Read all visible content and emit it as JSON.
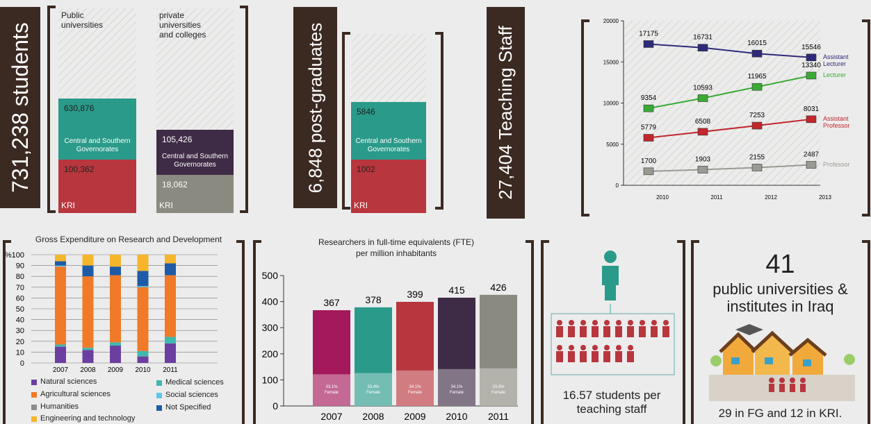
{
  "students": {
    "title": "731,238 students",
    "columns": [
      {
        "label": "Public universities",
        "segments": [
          {
            "value": "630,876",
            "label": "Central and Southern Governorates"
          },
          {
            "value": "100,362",
            "label": "KRI"
          }
        ]
      },
      {
        "label": "private universities and colleges",
        "segments": [
          {
            "value": "105,426",
            "label": "Central and Southern Governorates"
          },
          {
            "value": "18,062",
            "label": "KRI"
          }
        ]
      }
    ]
  },
  "postgraduates": {
    "title": "6,848 post-graduates",
    "segments": [
      {
        "value": 5846,
        "label": "Central and Southern Governorates"
      },
      {
        "value": 1002,
        "label": "KRI"
      }
    ]
  },
  "teaching_staff": {
    "title": "27,404 Teaching Staff"
  },
  "ratio": {
    "text": "16.57 students per teaching staff"
  },
  "universities": {
    "count": "41",
    "label": "public universities & institutes in Iraq",
    "note": "29 in FG and 12 in KRI."
  },
  "chart_data": [
    {
      "type": "line",
      "categories": [
        "2010",
        "2011",
        "2012",
        "2013"
      ],
      "ylim": [
        0,
        20000
      ],
      "yticks": [
        0,
        5000,
        10000,
        15000,
        20000
      ],
      "series": [
        {
          "name": "Assistant Lecturer",
          "color": "#2e2a7a",
          "values": [
            17175,
            16731,
            16015,
            15546
          ]
        },
        {
          "name": "Lecturer",
          "color": "#3aaa35",
          "values": [
            9354,
            10593,
            11965,
            13340
          ]
        },
        {
          "name": "Assistant Professor",
          "color": "#c1272d",
          "values": [
            5779,
            6508,
            7253,
            8031
          ]
        },
        {
          "name": "Professor",
          "color": "#9a9a94",
          "values": [
            1700,
            1903,
            2155,
            2487
          ]
        }
      ]
    },
    {
      "type": "stacked-bar",
      "title": "Gross Expenditure on Research and Development",
      "categories": [
        "2007",
        "2008",
        "2009",
        "2010",
        "2011"
      ],
      "ylim": [
        0,
        100
      ],
      "yticks": [
        0,
        10,
        20,
        30,
        40,
        50,
        60,
        70,
        80,
        90,
        {
          "value": 100,
          "label": "%100"
        }
      ],
      "grid": true,
      "series": [
        {
          "name": "Natural sciences",
          "color": "#6b3fa0",
          "values": [
            15,
            12,
            16,
            6,
            18
          ]
        },
        {
          "name": "Medical sciences",
          "color": "#3fb8b0",
          "values": [
            2,
            2,
            3,
            5,
            6
          ]
        },
        {
          "name": "Agricultural sciences",
          "color": "#f07a28",
          "values": [
            72,
            66,
            62,
            59,
            57
          ]
        },
        {
          "name": "Social sciences",
          "color": "#5ec6e8",
          "values": [
            1,
            0,
            0,
            1,
            0
          ]
        },
        {
          "name": "Not Specified",
          "color": "#1f5aa6",
          "values": [
            4,
            10,
            8,
            14,
            11
          ]
        },
        {
          "name": "Humanities",
          "color": "#8c8c8c",
          "values": [
            0,
            0,
            0,
            0,
            0
          ]
        },
        {
          "name": "Engineering and technology",
          "color": "#f7b52b",
          "values": [
            6,
            10,
            11,
            15,
            8
          ]
        }
      ]
    },
    {
      "type": "bar",
      "title": [
        "Researchers in full-time equivalents (FTE)",
        "per million inhabitants"
      ],
      "categories": [
        "2007",
        "2008",
        "2009",
        "2010",
        "2011"
      ],
      "values": [
        367,
        378,
        399,
        415,
        426
      ],
      "colors": [
        "#a3195b",
        "#2a9a8a",
        "#b8363d",
        "#3e2b45",
        "#8a8a80"
      ],
      "female_share": [
        33.1,
        33.4,
        34.1,
        34.1,
        33.9
      ],
      "female_share_labels": [
        "33.1%",
        "33.4%",
        "34.1%",
        "34.1%",
        "33.9%"
      ],
      "female_label": "Female",
      "ylim": [
        0,
        500
      ],
      "yticks": [
        0,
        100,
        200,
        300,
        400,
        500
      ]
    }
  ]
}
